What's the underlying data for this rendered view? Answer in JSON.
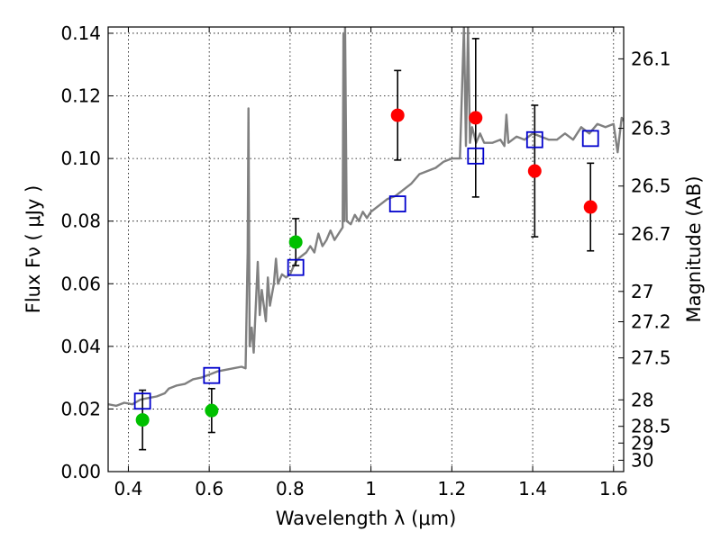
{
  "chart_data": {
    "type": "scatter",
    "xlabel": "Wavelength  λ (μm)",
    "ylabel": "Flux  Fν  ( μJy )",
    "y2label": "Magnitude (AB)",
    "xlim": [
      0.35,
      1.625
    ],
    "ylim": [
      0.0,
      0.142
    ],
    "grid": true,
    "x_ticks": [
      "0.4",
      "0.6",
      "0.8",
      "1",
      "1.2",
      "1.4",
      "1.6"
    ],
    "y_ticks": [
      "0.00",
      "0.02",
      "0.04",
      "0.06",
      "0.08",
      "0.10",
      "0.12",
      "0.14"
    ],
    "mag_ticks": [
      "26.1",
      "26.3",
      "26.5",
      "26.7",
      "27",
      "27.2",
      "27.5",
      "28",
      "28.5",
      "29",
      "30"
    ],
    "series": [
      {
        "marker": "circle",
        "color": "#00c000",
        "x": [
          0.435,
          0.606,
          0.814
        ],
        "y": [
          0.0165,
          0.0195,
          0.0733
        ],
        "yerr": [
          0.0095,
          0.007,
          0.0075
        ]
      },
      {
        "marker": "circle",
        "color": "#ff0000",
        "x": [
          1.066,
          1.259,
          1.405,
          1.543
        ],
        "y": [
          0.1138,
          0.113,
          0.096,
          0.0845
        ],
        "yerr": [
          0.0143,
          0.0253,
          0.021,
          0.014
        ]
      },
      {
        "marker": "open-square",
        "color": "#0000cc",
        "x": [
          0.435,
          0.606,
          0.814,
          1.066,
          1.259,
          1.405,
          1.543
        ],
        "y": [
          0.0225,
          0.0307,
          0.0652,
          0.0855,
          0.1008,
          0.106,
          0.1064
        ]
      },
      {
        "marker": "line",
        "color": "#808080",
        "x": [
          0.35,
          0.37,
          0.39,
          0.41,
          0.43,
          0.45,
          0.47,
          0.49,
          0.5,
          0.52,
          0.54,
          0.56,
          0.58,
          0.6,
          0.62,
          0.64,
          0.66,
          0.68,
          0.69,
          0.695,
          0.697,
          0.7,
          0.705,
          0.71,
          0.72,
          0.725,
          0.73,
          0.74,
          0.745,
          0.75,
          0.76,
          0.765,
          0.77,
          0.78,
          0.79,
          0.8,
          0.81,
          0.82,
          0.83,
          0.84,
          0.85,
          0.86,
          0.87,
          0.88,
          0.89,
          0.9,
          0.91,
          0.92,
          0.93,
          0.932,
          0.934,
          0.936,
          0.94,
          0.95,
          0.96,
          0.97,
          0.98,
          0.99,
          1.0,
          1.02,
          1.04,
          1.06,
          1.08,
          1.1,
          1.12,
          1.14,
          1.16,
          1.18,
          1.2,
          1.22,
          1.23,
          1.235,
          1.24,
          1.245,
          1.25,
          1.26,
          1.27,
          1.28,
          1.3,
          1.32,
          1.33,
          1.335,
          1.34,
          1.36,
          1.38,
          1.4,
          1.42,
          1.44,
          1.46,
          1.48,
          1.5,
          1.52,
          1.54,
          1.56,
          1.58,
          1.6,
          1.61,
          1.62,
          1.625
        ],
        "y": [
          0.0215,
          0.021,
          0.022,
          0.0215,
          0.023,
          0.0235,
          0.024,
          0.025,
          0.0265,
          0.0275,
          0.028,
          0.0295,
          0.03,
          0.031,
          0.032,
          0.0325,
          0.033,
          0.0335,
          0.033,
          0.07,
          0.116,
          0.04,
          0.046,
          0.038,
          0.067,
          0.05,
          0.058,
          0.048,
          0.062,
          0.053,
          0.06,
          0.068,
          0.06,
          0.063,
          0.062,
          0.063,
          0.066,
          0.068,
          0.069,
          0.07,
          0.072,
          0.07,
          0.076,
          0.072,
          0.074,
          0.077,
          0.074,
          0.076,
          0.078,
          0.14,
          0.08,
          0.142,
          0.08,
          0.079,
          0.082,
          0.08,
          0.083,
          0.081,
          0.083,
          0.085,
          0.087,
          0.088,
          0.09,
          0.092,
          0.095,
          0.096,
          0.097,
          0.099,
          0.1,
          0.1,
          0.142,
          0.104,
          0.142,
          0.105,
          0.11,
          0.105,
          0.108,
          0.105,
          0.105,
          0.106,
          0.104,
          0.114,
          0.105,
          0.107,
          0.106,
          0.108,
          0.107,
          0.106,
          0.106,
          0.108,
          0.106,
          0.11,
          0.108,
          0.111,
          0.11,
          0.111,
          0.102,
          0.113,
          0.112
        ]
      }
    ]
  }
}
